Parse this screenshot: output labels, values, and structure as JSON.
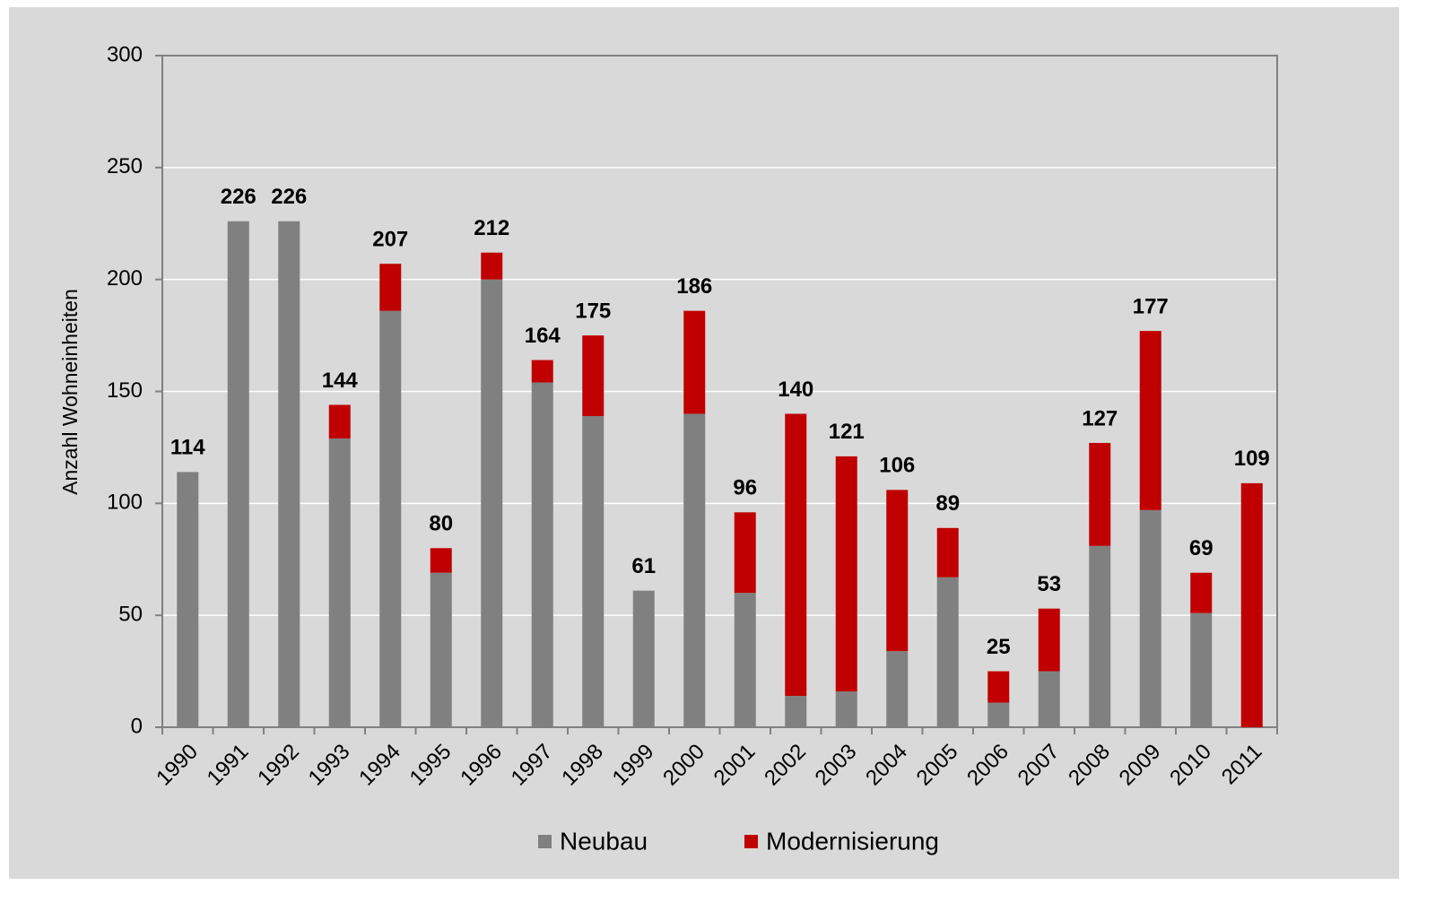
{
  "chart_data": {
    "type": "stacked_bar",
    "y_label": "Anzahl Wohneinheiten",
    "categories": [
      "1990",
      "1991",
      "1992",
      "1993",
      "1994",
      "1995",
      "1996",
      "1997",
      "1998",
      "1999",
      "2000",
      "2001",
      "2002",
      "2003",
      "2004",
      "2005",
      "2006",
      "2007",
      "2008",
      "2009",
      "2010",
      "2011"
    ],
    "series": [
      {
        "name": "Neubau",
        "color": "#808080",
        "values": [
          114,
          226,
          226,
          129,
          186,
          69,
          200,
          154,
          139,
          61,
          140,
          60,
          14,
          16,
          34,
          67,
          11,
          25,
          81,
          97,
          51,
          0
        ]
      },
      {
        "name": "Modernisierung",
        "color": "#c00000",
        "values": [
          0,
          0,
          0,
          15,
          21,
          11,
          12,
          10,
          36,
          0,
          46,
          36,
          126,
          105,
          72,
          22,
          14,
          28,
          46,
          80,
          18,
          109
        ]
      }
    ],
    "totals": [
      114,
      226,
      226,
      144,
      207,
      80,
      212,
      164,
      175,
      61,
      186,
      96,
      140,
      121,
      106,
      89,
      25,
      53,
      127,
      177,
      69,
      109
    ],
    "ylim": [
      0,
      300
    ],
    "yticks": [
      0,
      50,
      100,
      150,
      200,
      250,
      300
    ],
    "grid": true,
    "legend": "bottom"
  }
}
